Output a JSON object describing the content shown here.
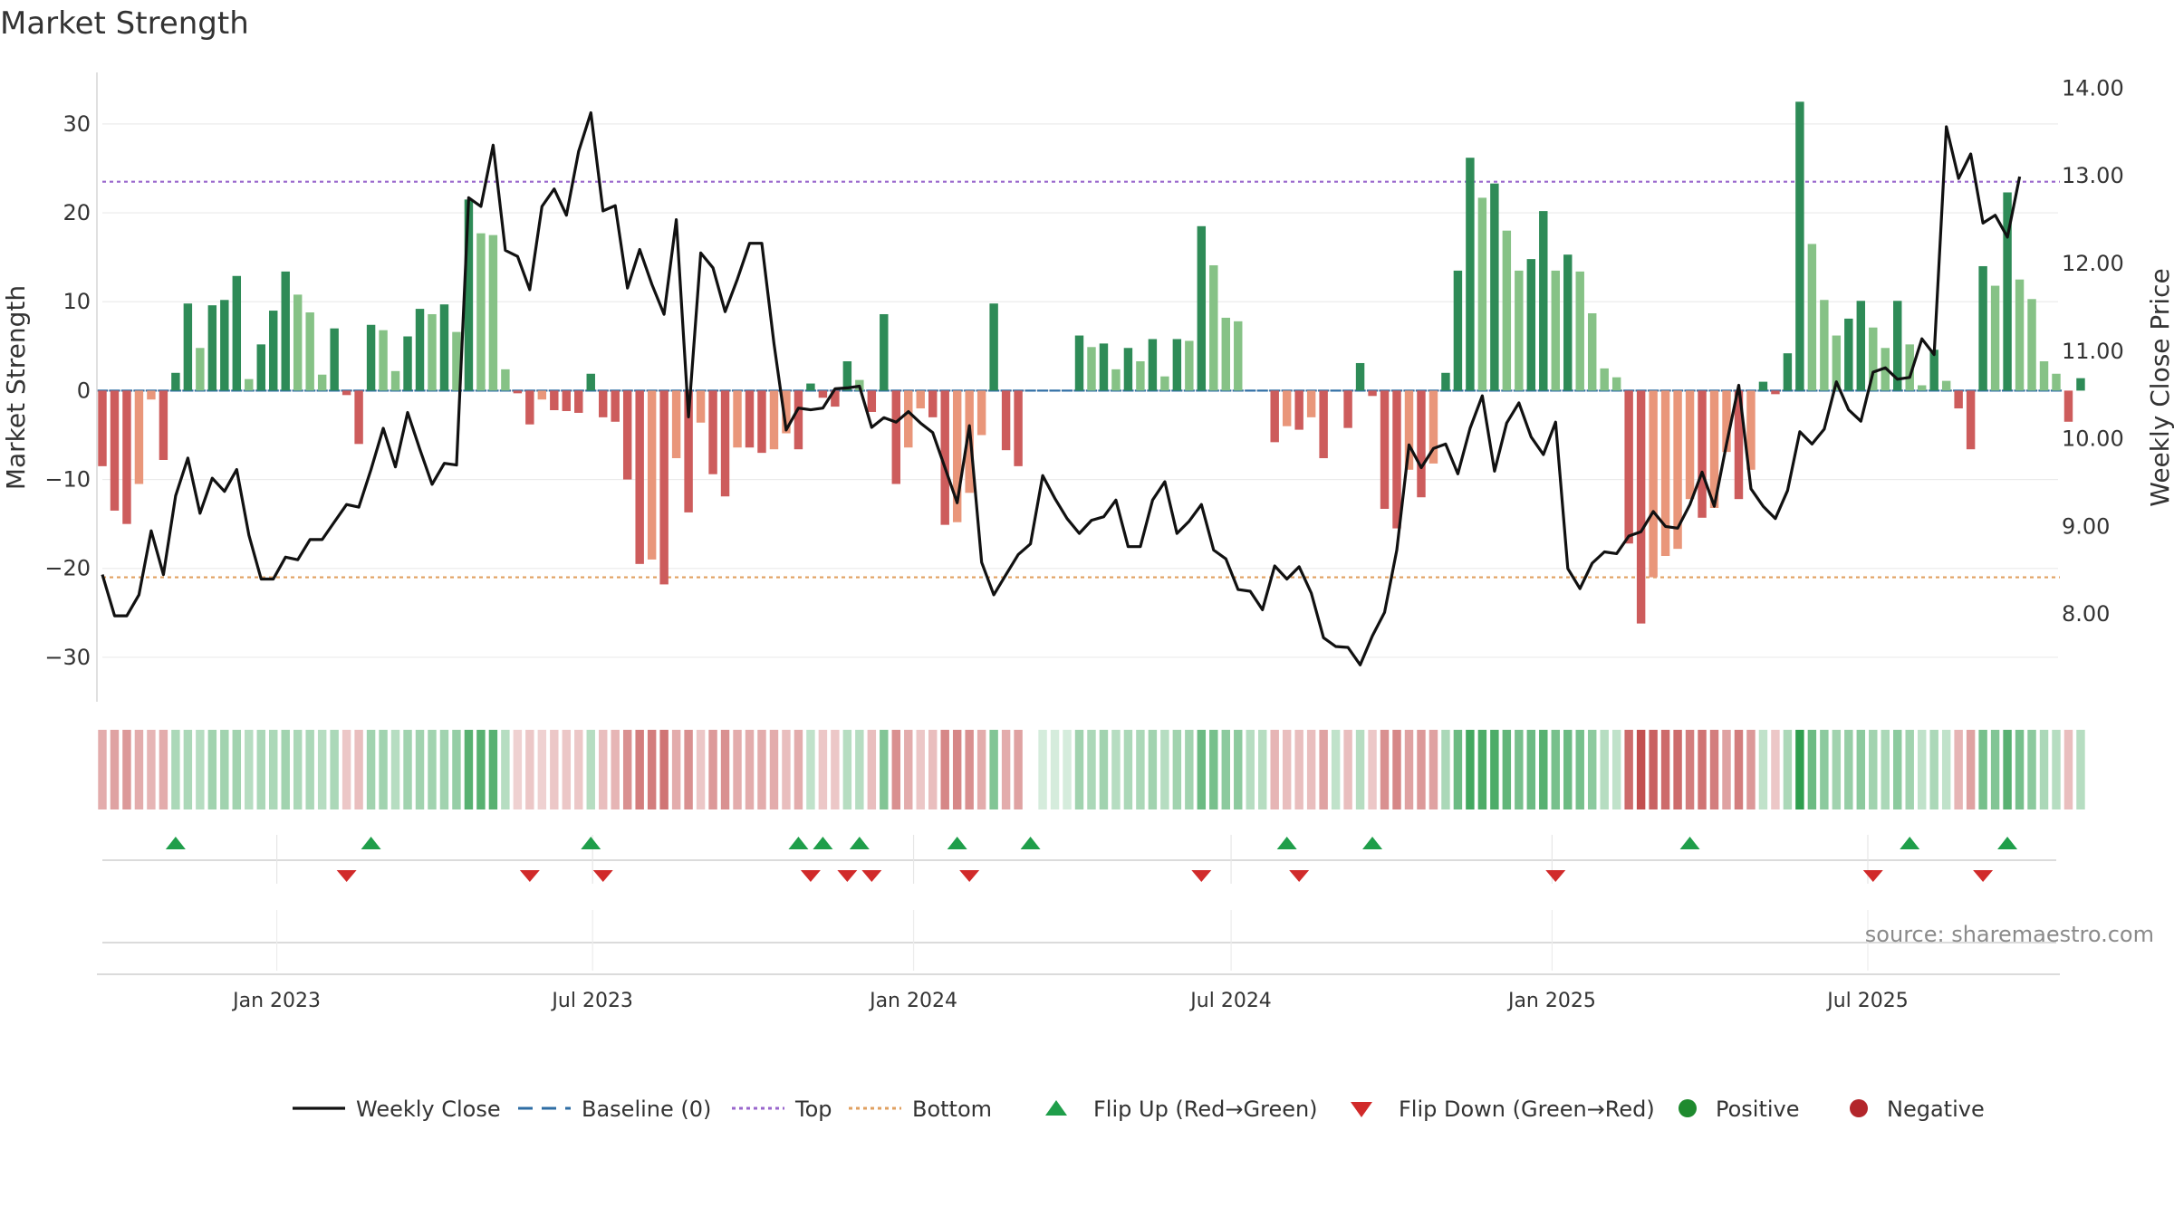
{
  "chart_data": {
    "type": "bar",
    "title": "Market Strength",
    "ylabel": "Market Strength",
    "y2label": "Weekly Close Price",
    "ylim": [
      -35,
      36
    ],
    "y2lim": [
      7.0,
      14.2
    ],
    "yticks": [
      "30",
      "20",
      "10",
      "0",
      "−10",
      "−20",
      "−30"
    ],
    "ytick_values": [
      30,
      20,
      10,
      0,
      -10,
      -20,
      -30
    ],
    "y2ticks": [
      "14.00",
      "13.00",
      "12.00",
      "11.00",
      "10.00",
      "9.00",
      "8.00"
    ],
    "y2tick_values": [
      14,
      13,
      12,
      11,
      10,
      9,
      8
    ],
    "x_start": "2022-09-23",
    "weeks": 161,
    "xticks": [
      {
        "date": "2023-01-01",
        "label": "Jan 2023"
      },
      {
        "date": "2023-07-01",
        "label": "Jul 2023"
      },
      {
        "date": "2024-01-01",
        "label": "Jan 2024"
      },
      {
        "date": "2024-07-01",
        "label": "Jul 2024"
      },
      {
        "date": "2025-01-01",
        "label": "Jan 2025"
      },
      {
        "date": "2025-07-01",
        "label": "Jul 2025"
      }
    ],
    "top_level": 23.5,
    "bottom_level": -21,
    "strength": [
      -8.5,
      -13.5,
      -15,
      -10.5,
      -1,
      -7.8,
      2,
      9.8,
      4.8,
      9.6,
      10.2,
      12.9,
      1.3,
      5.2,
      9,
      13.4,
      10.8,
      8.8,
      1.8,
      7,
      -0.5,
      -6,
      7.4,
      6.8,
      2.2,
      6.1,
      9.2,
      8.6,
      9.7,
      6.6,
      21.5,
      17.7,
      17.5,
      2.4,
      -0.3,
      -3.8,
      -1,
      -2.2,
      -2.3,
      -2.5,
      1.9,
      -3,
      -3.5,
      -10,
      -19.5,
      -19,
      -21.8,
      -7.6,
      -13.7,
      -3.6,
      -9.4,
      -11.9,
      -6.4,
      -6.4,
      -7,
      -6.6,
      -4.8,
      -6.6,
      0.8,
      -0.8,
      -1.8,
      3.3,
      1.2,
      -2.4,
      8.6,
      -10.5,
      -6.4,
      -2,
      -3,
      -15.1,
      -14.8,
      -11.5,
      -5,
      9.8,
      -6.7,
      -8.5,
      0,
      0,
      0,
      0,
      6.2,
      4.9,
      5.3,
      2.4,
      4.8,
      3.3,
      5.8,
      1.6,
      5.8,
      5.6,
      18.5,
      14.1,
      8.2,
      7.8,
      0,
      0,
      -5.8,
      -4,
      -4.4,
      -3,
      -7.6,
      0,
      -4.2,
      3.1,
      -0.6,
      -13.3,
      -15.5,
      -8.9,
      -12,
      -8.2,
      2,
      13.5,
      26.2,
      21.7,
      23.3,
      18,
      13.5,
      14.8,
      20.2,
      13.5,
      15.3,
      13.4,
      8.7,
      2.5,
      1.5,
      -17.2,
      -26.2,
      -21,
      -18.6,
      -17.8,
      -12.2,
      -14.3,
      -13.2,
      -6.9,
      -12.2,
      -8.9,
      1,
      -0.4,
      4.2,
      32.5,
      16.5,
      10.2,
      6.2,
      8.1,
      10.1,
      7.1,
      4.8,
      10.1,
      5.2,
      0.6,
      4.6,
      1.1,
      -2,
      -6.6,
      14,
      11.8,
      22.3,
      12.5,
      10.3,
      3.3,
      1.9,
      -3.5,
      1.4
    ],
    "close": [
      8.45,
      7.98,
      7.98,
      8.22,
      8.95,
      8.45,
      9.35,
      9.78,
      9.15,
      9.55,
      9.4,
      9.65,
      8.9,
      8.4,
      8.4,
      8.65,
      8.62,
      8.85,
      8.85,
      9.05,
      9.25,
      9.22,
      9.65,
      10.12,
      9.68,
      10.3,
      9.88,
      9.48,
      9.72,
      9.7,
      12.75,
      12.65,
      13.35,
      12.15,
      12.08,
      11.7,
      12.65,
      12.85,
      12.55,
      13.28,
      13.72,
      12.6,
      12.66,
      11.72,
      12.16,
      11.76,
      11.42,
      12.5,
      10.25,
      12.12,
      11.95,
      11.45,
      11.82,
      12.23,
      12.23,
      11.08,
      10.1,
      10.35,
      10.33,
      10.35,
      10.57,
      10.58,
      10.6,
      10.13,
      10.24,
      10.19,
      10.31,
      10.18,
      10.07,
      9.67,
      9.27,
      10.15,
      8.59,
      8.22,
      8.45,
      8.68,
      8.8,
      9.58,
      9.32,
      9.09,
      8.92,
      9.07,
      9.11,
      9.3,
      8.77,
      8.77,
      9.3,
      9.51,
      8.92,
      9.06,
      9.25,
      8.73,
      8.63,
      8.28,
      8.26,
      8.05,
      8.55,
      8.4,
      8.54,
      8.24,
      7.73,
      7.63,
      7.62,
      7.42,
      7.75,
      8.02,
      8.73,
      9.93,
      9.67,
      9.89,
      9.94,
      9.6,
      10.12,
      10.49,
      9.63,
      10.18,
      10.41,
      10.02,
      9.82,
      10.19,
      8.52,
      8.29,
      8.58,
      8.71,
      8.69,
      8.89,
      8.94,
      9.17,
      9.0,
      8.98,
      9.25,
      9.62,
      9.23,
      9.94,
      10.61,
      9.43,
      9.23,
      9.09,
      9.41,
      10.08,
      9.94,
      10.11,
      10.65,
      10.33,
      10.2,
      10.76,
      10.81,
      10.68,
      10.7,
      11.14,
      10.96,
      13.56,
      12.97,
      13.25,
      12.46,
      12.55,
      12.3,
      12.99
    ],
    "heatmap_intensity": [
      0.45,
      0.5,
      0.55,
      0.45,
      0.4,
      0.45,
      0.4,
      0.4,
      0.35,
      0.45,
      0.45,
      0.45,
      0.35,
      0.4,
      0.4,
      0.45,
      0.4,
      0.4,
      0.35,
      0.4,
      0.3,
      0.35,
      0.45,
      0.45,
      0.35,
      0.45,
      0.45,
      0.45,
      0.45,
      0.5,
      0.8,
      0.8,
      0.8,
      0.35,
      0.25,
      0.3,
      0.25,
      0.3,
      0.3,
      0.3,
      0.35,
      0.35,
      0.4,
      0.6,
      0.7,
      0.7,
      0.75,
      0.45,
      0.6,
      0.3,
      0.55,
      0.6,
      0.45,
      0.45,
      0.45,
      0.45,
      0.35,
      0.45,
      0.3,
      0.3,
      0.3,
      0.35,
      0.35,
      0.35,
      0.6,
      0.6,
      0.45,
      0.3,
      0.35,
      0.65,
      0.65,
      0.6,
      0.45,
      0.6,
      0.45,
      0.5,
      0,
      0.2,
      0.2,
      0.2,
      0.45,
      0.4,
      0.45,
      0.35,
      0.4,
      0.4,
      0.45,
      0.35,
      0.45,
      0.45,
      0.7,
      0.65,
      0.55,
      0.55,
      0.35,
      0.35,
      0.4,
      0.35,
      0.35,
      0.35,
      0.5,
      0.3,
      0.35,
      0.35,
      0.3,
      0.6,
      0.65,
      0.5,
      0.55,
      0.5,
      0.4,
      0.7,
      0.9,
      0.85,
      0.85,
      0.75,
      0.65,
      0.7,
      0.8,
      0.65,
      0.7,
      0.65,
      0.55,
      0.35,
      0.3,
      0.8,
      0.95,
      0.85,
      0.8,
      0.8,
      0.7,
      0.75,
      0.7,
      0.5,
      0.7,
      0.55,
      0.3,
      0.3,
      0.4,
      1,
      0.7,
      0.55,
      0.45,
      0.5,
      0.55,
      0.45,
      0.4,
      0.55,
      0.45,
      0.3,
      0.4,
      0.3,
      0.4,
      0.5,
      0.65,
      0.6,
      0.8,
      0.65,
      0.55,
      0.4,
      0.35,
      0.35,
      0.35
    ],
    "flip_up_weeks": [
      6,
      22,
      40,
      57,
      59,
      62,
      70,
      76,
      97,
      104,
      130,
      148,
      156
    ],
    "flip_down_weeks": [
      20,
      35,
      41,
      58,
      61,
      63,
      71,
      90,
      98,
      119,
      145,
      154
    ],
    "legend": [
      {
        "label": "Weekly Close",
        "kind": "line",
        "color": "#111111"
      },
      {
        "label": "Baseline (0)",
        "kind": "dash",
        "color": "#2e6da4"
      },
      {
        "label": "Top",
        "kind": "dot",
        "color": "#9966cc"
      },
      {
        "label": "Bottom",
        "kind": "dot",
        "color": "#e0a060"
      },
      {
        "label": "Flip Up (Red→Green)",
        "kind": "tri-up",
        "color": "#1f9e4a"
      },
      {
        "label": "Flip Down (Green→Red)",
        "kind": "tri-down",
        "color": "#d12a2a"
      },
      {
        "label": "Positive",
        "kind": "circle",
        "color": "#1e8a2e"
      },
      {
        "label": "Negative",
        "kind": "circle",
        "color": "#b3262b"
      }
    ],
    "source": "source: sharemaestro.com",
    "colors": {
      "pos_strong": "#2e8b57",
      "pos_light": "#86c286",
      "neg_strong": "#cd5c5c",
      "neg_light": "#e9967a",
      "close": "#111111",
      "baseline": "#2e6da4",
      "top": "#9966cc",
      "bottom": "#e0a060",
      "flip_up": "#1f9e4a",
      "flip_down": "#d12a2a"
    }
  }
}
